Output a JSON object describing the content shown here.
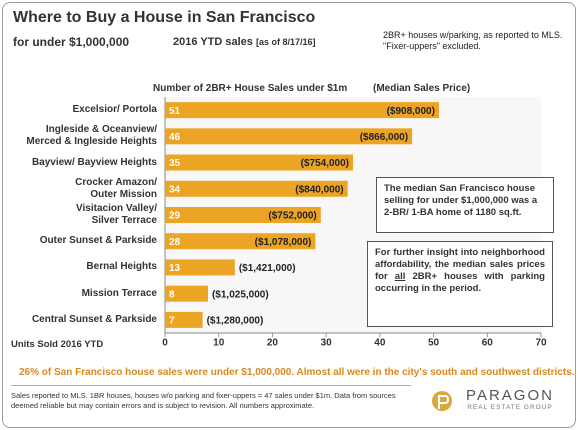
{
  "chart_data": {
    "type": "bar",
    "orientation": "horizontal",
    "title": "Where to Buy a House in San Francisco",
    "subtitle": "for under $1,000,000",
    "period": "2016 YTD sales",
    "as_of": "[as of 8/17/16]",
    "note": "2BR+ houses w/parking, as reported to MLS. \"Fixer-uppers\" excluded.",
    "header": "Number of 2BR+ House Sales under $1m",
    "price_header": "(Median Sales Price)",
    "categories": [
      "Excelsior/ Portola",
      "Ingleside & Oceanview/\nMerced & Ingleside Heights",
      "Bayview/ Bayview Heights",
      "Crocker Amazon/\nOuter Mission",
      "Visitacion Valley/\nSilver Terrace",
      "Outer Sunset & Parkside",
      "Bernal Heights",
      "Mission Terrace",
      "Central Sunset  & Parkside"
    ],
    "values": [
      51,
      46,
      35,
      34,
      29,
      28,
      13,
      8,
      7
    ],
    "price_labels": [
      "($908,000)",
      "($866,000)",
      "($754,000)",
      "($840,000)",
      "($752,000)",
      "($1,078,000)",
      "($1,421,000)",
      "($1,025,000)",
      "($1,280,000)"
    ],
    "color": "#eba423",
    "xlim": [
      0,
      70
    ],
    "xticks": [
      0,
      10,
      20,
      30,
      40,
      50,
      60,
      70
    ],
    "grid": false,
    "x_label": "Units Sold 2016 YTD",
    "annotations": [
      "The median San Francisco house selling for under $1,000,000 was a 2-BR/ 1-BA home of 1180 sq.ft.",
      [
        "For further insight into neighborhood affordability, the median sales prices for ",
        "all",
        " 2BR+ houses with parking occurring in the period."
      ]
    ],
    "finding": "26% of San Francisco house sales were under $1,000,000.  Almost all were in the city's south and southwest districts.",
    "footnote": "Sales reported to MLS. 1BR houses, houses w/o parking and fixer-uppers = 47 sales under $1m. Data from sources deemed reliable but may contain errors and is subject to revision. All numbers approximate.",
    "brand": "PARAGON",
    "brand_tagline": "REAL ESTATE GROUP"
  }
}
